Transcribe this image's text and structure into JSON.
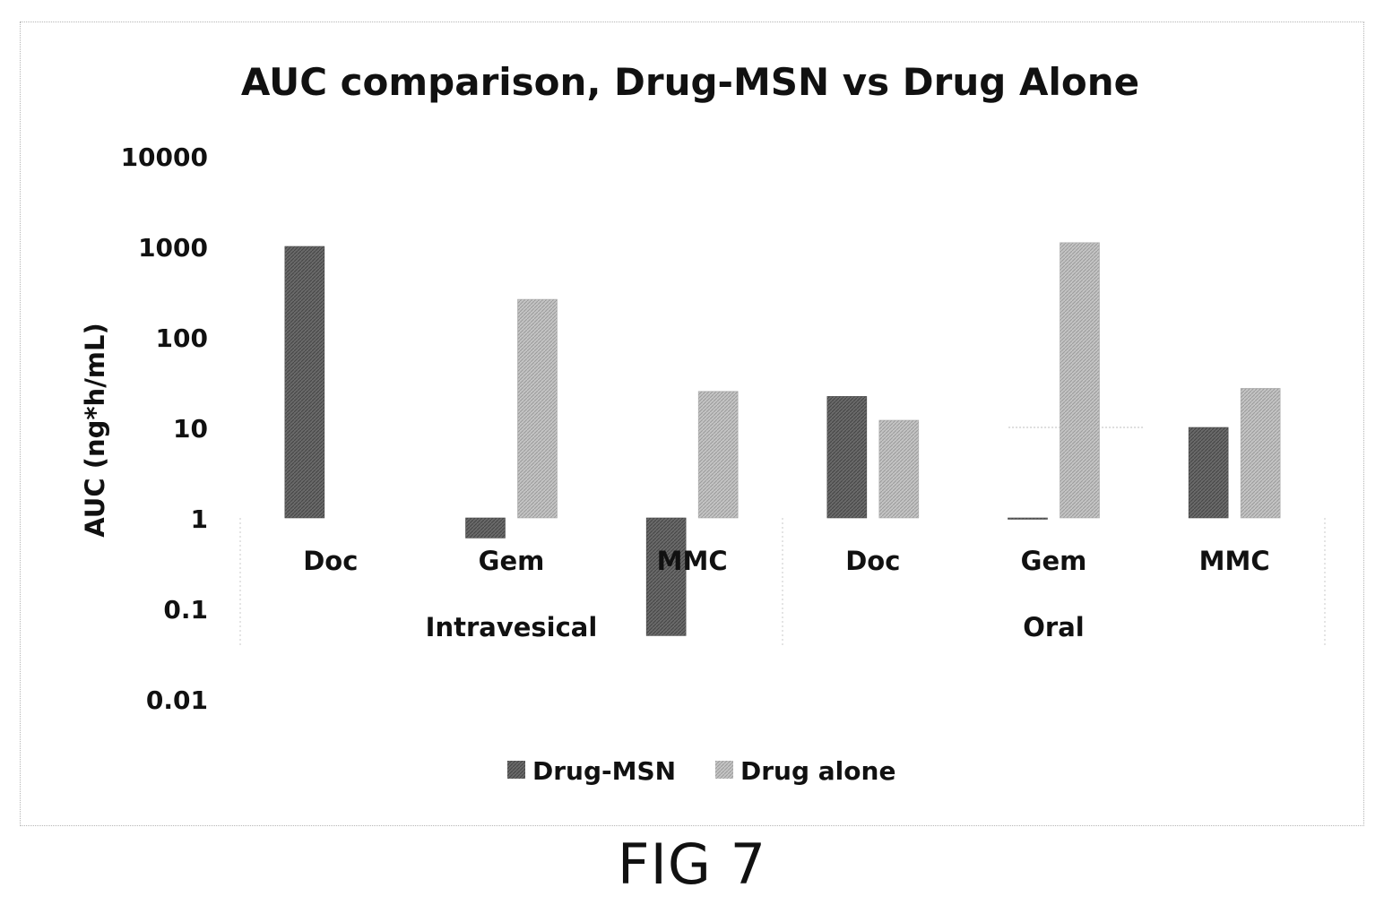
{
  "figure": {
    "caption": "FIG 7"
  },
  "chart_data": {
    "type": "bar",
    "title": "AUC comparison, Drug-MSN vs Drug Alone",
    "ylabel": "AUC (ng*h/mL)",
    "xlabel": "",
    "yscale": "log",
    "ylim": [
      0.01,
      10000
    ],
    "yticks": [
      "10000",
      "1000",
      "100",
      "10",
      "1",
      "0.1",
      "0.01"
    ],
    "ytick_values": [
      10000,
      1000,
      100,
      10,
      1,
      0.1,
      0.01
    ],
    "baseline": 1,
    "groups": [
      {
        "label": "Intravesical",
        "categories": [
          "Doc",
          "Gem",
          "MMC"
        ]
      },
      {
        "label": "Oral",
        "categories": [
          "Doc",
          "Gem",
          "MMC"
        ]
      }
    ],
    "categories": [
      "Doc",
      "Gem",
      "MMC",
      "Doc",
      "Gem",
      "MMC"
    ],
    "series": [
      {
        "name": "Drug-MSN",
        "color": "#5f5f5f",
        "values": [
          1000,
          0.6,
          0.05,
          22,
          0.97,
          10
        ]
      },
      {
        "name": "Drug alone",
        "color": "#b9b9b9",
        "values": [
          null,
          260,
          25,
          12,
          1100,
          27
        ]
      }
    ],
    "legend": "bottom",
    "grid": false
  }
}
